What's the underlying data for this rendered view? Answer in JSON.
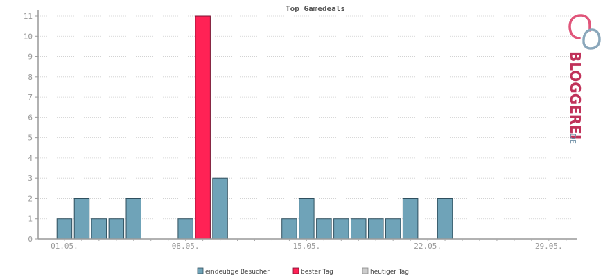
{
  "chart_data": {
    "type": "bar",
    "title": "Top Gamedeals",
    "xlabel": "",
    "ylabel": "",
    "ylim": [
      0,
      11
    ],
    "yticks": [
      0,
      1,
      2,
      3,
      4,
      5,
      6,
      7,
      8,
      9,
      10,
      11
    ],
    "xlim": [
      0,
      31
    ],
    "xticks": [
      {
        "day": 1,
        "label": "01.05."
      },
      {
        "day": 8,
        "label": "08.05."
      },
      {
        "day": 15,
        "label": "15.05."
      },
      {
        "day": 22,
        "label": "22.05."
      },
      {
        "day": 29,
        "label": "29.05."
      }
    ],
    "grid": true,
    "legend_position": "bottom",
    "series": [
      {
        "name": "eindeutige Besucher",
        "color": "#6fa3b8"
      },
      {
        "name": "bester Tag",
        "color": "#ff2255"
      },
      {
        "name": "heutiger Tag",
        "color": "#cccccc"
      }
    ],
    "bars": [
      {
        "day": 1,
        "value": 1,
        "series": 0
      },
      {
        "day": 2,
        "value": 2,
        "series": 0
      },
      {
        "day": 3,
        "value": 1,
        "series": 0
      },
      {
        "day": 4,
        "value": 1,
        "series": 0
      },
      {
        "day": 5,
        "value": 2,
        "series": 0
      },
      {
        "day": 8,
        "value": 1,
        "series": 0
      },
      {
        "day": 9,
        "value": 11,
        "series": 1
      },
      {
        "day": 10,
        "value": 3,
        "series": 0
      },
      {
        "day": 14,
        "value": 1,
        "series": 0
      },
      {
        "day": 15,
        "value": 2,
        "series": 0
      },
      {
        "day": 16,
        "value": 1,
        "series": 0
      },
      {
        "day": 17,
        "value": 1,
        "series": 0
      },
      {
        "day": 18,
        "value": 1,
        "series": 0
      },
      {
        "day": 19,
        "value": 1,
        "series": 0
      },
      {
        "day": 20,
        "value": 1,
        "series": 0
      },
      {
        "day": 21,
        "value": 2,
        "series": 0
      },
      {
        "day": 23,
        "value": 2,
        "series": 0
      }
    ]
  },
  "logo": {
    "text": "BLOGGEREI",
    "suffix": ".DE",
    "color_main": "#c0325a",
    "color_suffix": "#6f8fa6"
  }
}
